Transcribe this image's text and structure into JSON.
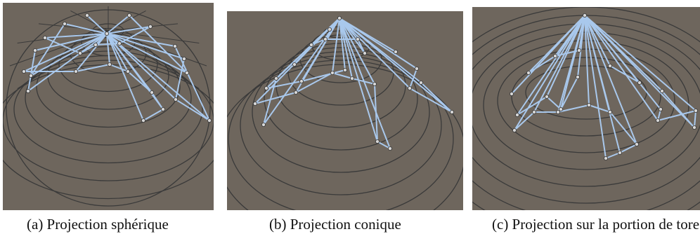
{
  "figure": {
    "panels": [
      {
        "caption": "(a) Projection sphérique"
      },
      {
        "caption": "(b) Projection conique"
      },
      {
        "caption": "(c) Projection sur la portion de tore"
      }
    ]
  },
  "colors": {
    "background": "#6e665d",
    "rings": "#3a3a3a",
    "edges": "#a9c8ec",
    "nodes": "#d6d6d6"
  }
}
